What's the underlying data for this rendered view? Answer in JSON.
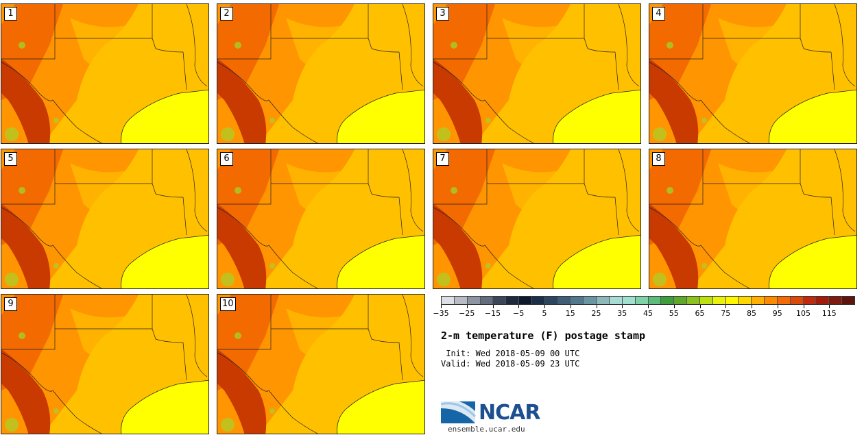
{
  "panels": [
    {
      "label": "1"
    },
    {
      "label": "2"
    },
    {
      "label": "3"
    },
    {
      "label": "4"
    },
    {
      "label": "5"
    },
    {
      "label": "6"
    },
    {
      "label": "7"
    },
    {
      "label": "8"
    },
    {
      "label": "9"
    },
    {
      "label": "10"
    }
  ],
  "colorbar": {
    "colors": [
      "#dcdfe6",
      "#b8bcc5",
      "#8e95a2",
      "#646d7e",
      "#3b4658",
      "#1f2a3d",
      "#0d1a2e",
      "#1b2f47",
      "#2d4660",
      "#3f5d77",
      "#52788d",
      "#6a95a3",
      "#8cb8b9",
      "#a6dcd4",
      "#9fe0cf",
      "#7fd1a6",
      "#5cbd7a",
      "#3f9e3c",
      "#60a82b",
      "#8cc21f",
      "#bde012",
      "#e8f20c",
      "#fff700",
      "#ffd800",
      "#ffb000",
      "#ff8a00",
      "#f46a07",
      "#dc4a0a",
      "#c12a0c",
      "#a01d0c",
      "#7e1a0e",
      "#5e150d"
    ],
    "ticks": [
      "−35",
      "−25",
      "−15",
      "−5",
      "5",
      "15",
      "25",
      "35",
      "45",
      "55",
      "65",
      "75",
      "85",
      "95",
      "105",
      "115"
    ]
  },
  "title": "2-m temperature (F) postage stamp",
  "init_text": " Init: Wed 2018-05-09 00 UTC",
  "valid_text": "Valid: Wed 2018-05-09 23 UTC",
  "logo": {
    "name": "NCAR",
    "url": "ensemble.ucar.edu",
    "color": "#1d4f91"
  },
  "map_colors": {
    "gulf": "#ffff00",
    "land_warm": "#ffc000",
    "land_hot": "#ff9500",
    "land_hotter": "#f26a00",
    "land_hottest": "#c93a00",
    "cool": "#9ade30"
  }
}
